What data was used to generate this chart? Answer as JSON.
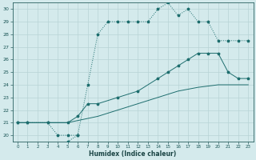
{
  "xlabel": "Humidex (Indice chaleur)",
  "bg_color": "#d4eaec",
  "line_color": "#1e6e6e",
  "grid_color": "#c0d8da",
  "xlim": [
    -0.5,
    23.5
  ],
  "ylim": [
    19.5,
    30.5
  ],
  "xticks": [
    0,
    1,
    2,
    3,
    4,
    5,
    6,
    7,
    8,
    9,
    10,
    11,
    12,
    13,
    14,
    15,
    16,
    17,
    18,
    19,
    20,
    21,
    22,
    23
  ],
  "yticks": [
    20,
    21,
    22,
    23,
    24,
    25,
    26,
    27,
    28,
    29,
    30
  ],
  "line1_dotted": {
    "x": [
      0,
      1,
      3,
      4,
      5,
      6,
      7,
      8,
      9,
      10,
      11,
      12,
      13,
      14,
      15,
      16,
      17,
      18,
      19,
      20,
      21,
      22,
      23
    ],
    "y": [
      21,
      21,
      21,
      20,
      20,
      20,
      24,
      28,
      29,
      29,
      29,
      29,
      29,
      30,
      30.5,
      29.5,
      30,
      29,
      29,
      27.5,
      27.5,
      27.5,
      27.5
    ]
  },
  "line1_extra": {
    "x": [
      5,
      6
    ],
    "y": [
      19.5,
      20
    ]
  },
  "line2": {
    "x": [
      0,
      1,
      3,
      5,
      6,
      7,
      8,
      10,
      12,
      14,
      15,
      16,
      17,
      18,
      19,
      20,
      21,
      22,
      23
    ],
    "y": [
      21,
      21,
      21,
      21,
      21.5,
      22.5,
      22.5,
      23,
      23.5,
      24.5,
      25,
      25.5,
      26,
      26.5,
      26.5,
      26.5,
      25,
      24.5,
      24.5
    ]
  },
  "line3": {
    "x": [
      0,
      1,
      3,
      5,
      8,
      10,
      12,
      14,
      16,
      18,
      20,
      21,
      22,
      23
    ],
    "y": [
      21,
      21,
      21,
      21,
      21.5,
      22,
      22.5,
      23,
      23.5,
      23.8,
      24,
      24,
      24,
      24
    ]
  }
}
